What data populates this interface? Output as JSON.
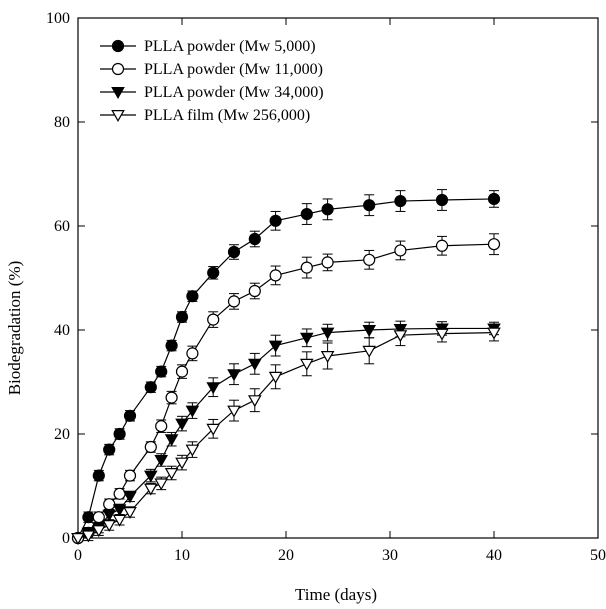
{
  "chart_data": {
    "type": "line",
    "xlabel": "Time (days)",
    "ylabel": "Biodegradation (%)",
    "xlim": [
      0,
      50
    ],
    "ylim": [
      0,
      100
    ],
    "xticks": [
      0,
      10,
      20,
      30,
      40,
      50
    ],
    "yticks": [
      0,
      20,
      40,
      60,
      80,
      100
    ],
    "grid": false,
    "legend_position": "top-left",
    "error_bars": true,
    "series": [
      {
        "name": "PLLA powder (Mw 5,000)",
        "marker": "filled-circle",
        "x": [
          0,
          1,
          2,
          3,
          4,
          5,
          7,
          8,
          9,
          10,
          11,
          13,
          15,
          17,
          19,
          22,
          24,
          28,
          31,
          35,
          40
        ],
        "y": [
          0,
          4,
          12,
          17,
          20,
          23.5,
          29,
          32,
          37,
          42.5,
          46.5,
          51,
          55,
          57.5,
          61,
          62.3,
          63.2,
          64,
          64.8,
          65,
          65.2
        ],
        "err": [
          0,
          1,
          1,
          1,
          1,
          1,
          1,
          1,
          1,
          1,
          1,
          1.2,
          1.4,
          1.5,
          1.8,
          2,
          2,
          2,
          2,
          2,
          1.6
        ]
      },
      {
        "name": "PLLA powder (Mw 11,000)",
        "marker": "open-circle",
        "x": [
          0,
          1,
          2,
          3,
          4,
          5,
          7,
          8,
          9,
          10,
          11,
          13,
          15,
          17,
          19,
          22,
          24,
          28,
          31,
          35,
          40
        ],
        "y": [
          0,
          1,
          4,
          6.5,
          8.5,
          12,
          17.5,
          21.5,
          27,
          32,
          35.5,
          42,
          45.5,
          47.5,
          50.5,
          52,
          53,
          53.5,
          55.3,
          56.2,
          56.5
        ],
        "err": [
          0,
          1,
          1,
          1,
          1,
          1,
          1,
          1.2,
          1.2,
          1.3,
          1.4,
          1.5,
          1.5,
          1.5,
          1.8,
          2,
          1.6,
          1.8,
          1.8,
          1.8,
          2
        ]
      },
      {
        "name": "PLLA powder (Mw 34,000)",
        "marker": "filled-triangle-down",
        "x": [
          0,
          1,
          2,
          3,
          4,
          5,
          7,
          8,
          9,
          10,
          11,
          13,
          15,
          17,
          19,
          22,
          24,
          28,
          31,
          35,
          40
        ],
        "y": [
          0,
          1,
          2,
          4.5,
          5.5,
          8,
          12,
          15,
          19,
          22,
          24.5,
          29,
          31.5,
          33.5,
          37,
          38.5,
          39.5,
          40,
          40.2,
          40.3,
          40.3
        ],
        "err": [
          0,
          1,
          1,
          1,
          1,
          1,
          1.2,
          1.2,
          1.3,
          1.4,
          1.5,
          1.8,
          2,
          2,
          2,
          1.7,
          1.6,
          1.5,
          1.5,
          1.3,
          1.2
        ]
      },
      {
        "name": "PLLA film (Mw 256,000)",
        "marker": "open-triangle-down",
        "x": [
          0,
          1,
          2,
          3,
          4,
          5,
          7,
          8,
          9,
          10,
          11,
          13,
          15,
          17,
          19,
          22,
          24,
          28,
          31,
          35,
          40
        ],
        "y": [
          0,
          0.5,
          1.5,
          2.5,
          3.5,
          5,
          9.5,
          10.5,
          12.5,
          14.5,
          17,
          21,
          24.5,
          26.5,
          31,
          33.5,
          35,
          36,
          39,
          39.3,
          39.5
        ],
        "err": [
          0,
          1,
          1,
          1,
          1,
          1,
          1,
          1.2,
          1.3,
          1.4,
          1.5,
          1.8,
          2,
          2.2,
          2.3,
          2.3,
          2.5,
          2.5,
          2,
          1.6,
          1.6
        ]
      }
    ]
  }
}
